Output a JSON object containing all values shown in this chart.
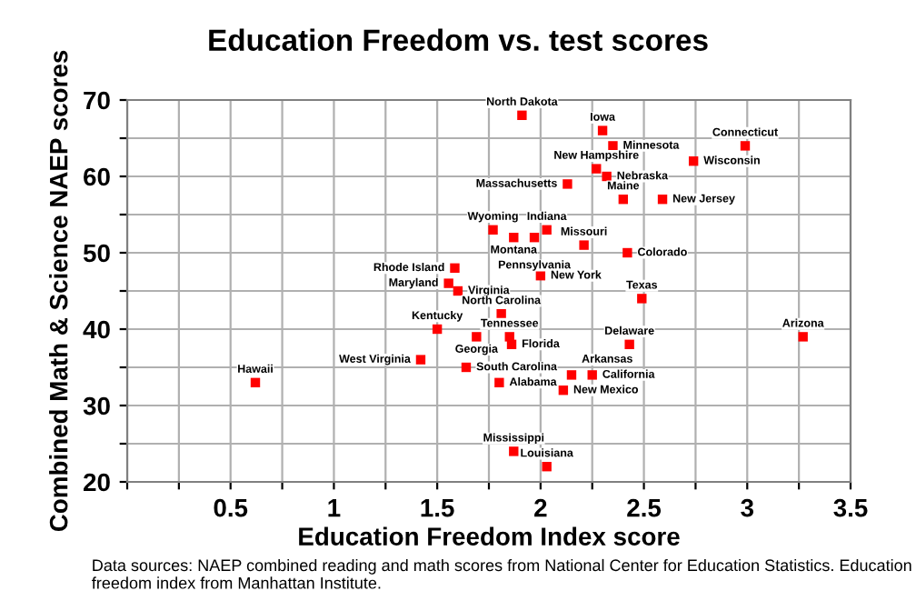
{
  "chart_data": {
    "type": "scatter",
    "title": "Education Freedom vs. test scores",
    "xlabel": "Education Freedom Index score",
    "ylabel": "Combined Math & Science NAEP scores",
    "series": [
      {
        "color": "#ff0000",
        "x": [
          1.91,
          2.3,
          2.35,
          2.99,
          2.74,
          2.27,
          2.32,
          2.13,
          2.4,
          2.59,
          1.77,
          1.87,
          1.97,
          2.03,
          2.21,
          2.42,
          1.585,
          2.0,
          1.555,
          1.6,
          2.49,
          1.81,
          1.5,
          1.69,
          1.85,
          1.86,
          2.43,
          3.27,
          1.42,
          1.64,
          1.8,
          2.15,
          2.25,
          2.11,
          1.87,
          2.03,
          0.62
        ],
        "values": [
          68,
          66,
          64,
          64,
          62,
          61,
          60,
          59,
          57,
          57,
          53,
          52,
          52,
          53,
          51,
          50,
          48,
          47,
          46,
          45,
          44,
          42,
          40,
          39,
          39,
          38,
          38,
          39,
          36,
          35,
          33,
          34,
          34,
          32,
          24,
          22,
          33
        ]
      }
    ],
    "annotations": [
      {
        "text": "North Dakota",
        "x": 1.91,
        "y": 68
      },
      {
        "text": "Iowa",
        "x": 2.3,
        "y": 66
      },
      {
        "text": "Minnesota",
        "x": 2.35,
        "y": 64
      },
      {
        "text": "Connecticut",
        "x": 2.99,
        "y": 64
      },
      {
        "text": "Wisconsin",
        "x": 2.74,
        "y": 62
      },
      {
        "text": "New Hampshire",
        "x": 2.27,
        "y": 61
      },
      {
        "text": "Nebraska",
        "x": 2.32,
        "y": 60
      },
      {
        "text": "Massachusetts",
        "x": 2.13,
        "y": 59
      },
      {
        "text": "Maine",
        "x": 2.4,
        "y": 57
      },
      {
        "text": "New Jersey",
        "x": 2.59,
        "y": 57
      },
      {
        "text": "Wyoming",
        "x": 1.77,
        "y": 53
      },
      {
        "text": "Montana",
        "x": 1.87,
        "y": 52
      },
      {
        "text": "Pennsylvania",
        "x": 1.97,
        "y": 52
      },
      {
        "text": "Indiana",
        "x": 2.03,
        "y": 53
      },
      {
        "text": "Missouri",
        "x": 2.21,
        "y": 51
      },
      {
        "text": "Colorado",
        "x": 2.42,
        "y": 50
      },
      {
        "text": "Rhode Island",
        "x": 1.585,
        "y": 48
      },
      {
        "text": "New York",
        "x": 2.0,
        "y": 47
      },
      {
        "text": "Maryland",
        "x": 1.555,
        "y": 46
      },
      {
        "text": "Virginia",
        "x": 1.6,
        "y": 45
      },
      {
        "text": "Texas",
        "x": 2.49,
        "y": 44
      },
      {
        "text": "North Carolina",
        "x": 1.81,
        "y": 42
      },
      {
        "text": "Kentucky",
        "x": 1.5,
        "y": 40
      },
      {
        "text": "Georgia",
        "x": 1.69,
        "y": 39
      },
      {
        "text": "Tennessee",
        "x": 1.85,
        "y": 39
      },
      {
        "text": "Florida",
        "x": 1.86,
        "y": 38
      },
      {
        "text": "Delaware",
        "x": 2.43,
        "y": 38
      },
      {
        "text": "Arizona",
        "x": 3.27,
        "y": 39
      },
      {
        "text": "West Virginia",
        "x": 1.42,
        "y": 36
      },
      {
        "text": "South Carolina",
        "x": 1.64,
        "y": 35
      },
      {
        "text": "Alabama",
        "x": 1.8,
        "y": 33
      },
      {
        "text": "Arkansas",
        "x": 2.15,
        "y": 34
      },
      {
        "text": "California",
        "x": 2.25,
        "y": 34
      },
      {
        "text": "New Mexico",
        "x": 2.11,
        "y": 32
      },
      {
        "text": "Mississippi",
        "x": 1.87,
        "y": 24
      },
      {
        "text": "Louisiana",
        "x": 2.03,
        "y": 22
      },
      {
        "text": "Hawaii",
        "x": 0.62,
        "y": 33
      },
      "Data sources: NAEP combined reading and math scores from National Center for Education Statistics. Education freedom index from Manhattan Institute."
    ],
    "xlim": [
      0,
      3.5
    ],
    "ylim": [
      20,
      70
    ],
    "xticks": [
      {
        "value": 0,
        "label": null
      },
      {
        "value": 0.25,
        "label": null
      },
      0.5,
      {
        "value": 0.75,
        "label": null
      },
      1,
      {
        "value": 1.25,
        "label": null
      },
      1.5,
      {
        "value": 1.75,
        "label": null
      },
      2,
      {
        "value": 2.25,
        "label": null
      },
      2.5,
      {
        "value": 2.75,
        "label": null
      },
      3,
      {
        "value": 3.25,
        "label": null
      },
      3.5
    ],
    "yticks": [
      20,
      {
        "value": 25,
        "label": null
      },
      30,
      {
        "value": 35,
        "label": null
      },
      40,
      {
        "value": 45,
        "label": null
      },
      50,
      {
        "value": 55,
        "label": null
      },
      60,
      {
        "value": 65,
        "label": null
      },
      70
    ],
    "grid": true,
    "marker": "square",
    "legend": false
  }
}
